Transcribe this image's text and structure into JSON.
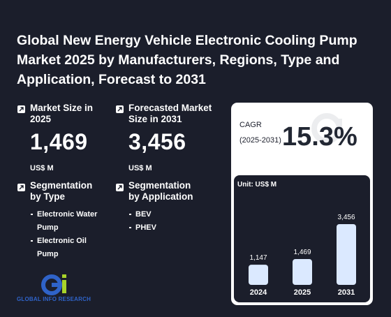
{
  "title": "Global New Energy Vehicle Electronic Cooling Pump Market 2025 by Manufacturers, Regions, Type and Application, Forecast to 2031",
  "market_size": {
    "label": "Market Size in 2025",
    "value": "1,469",
    "unit": "US$ M"
  },
  "forecast": {
    "label": "Forecasted Market Size in 2031",
    "value": "3,456",
    "unit": "US$ M"
  },
  "segmentation_type": {
    "label": "Segmentation by Type",
    "items": [
      "Electronic Water Pump",
      "Electronic Oil Pump"
    ]
  },
  "segmentation_application": {
    "label": "Segmentation by Application",
    "items": [
      "BEV",
      "PHEV"
    ]
  },
  "cagr": {
    "label": "CAGR",
    "period": "(2025-2031)",
    "value": "15.3%"
  },
  "logo_text": "GLOBAL INFO RESEARCH",
  "icons": {
    "arrow": "arrow-up-right-icon",
    "logo": "gi-logo-icon"
  },
  "colors": {
    "background": "#1b1e2b",
    "bar": "#dbe9ff",
    "logo_blue": "#2f63c8",
    "logo_green": "#a8d42a"
  },
  "chart_data": {
    "type": "bar",
    "unit_label": "Unit: US$ M",
    "categories": [
      "2024",
      "2025",
      "2031"
    ],
    "values": [
      1147,
      1469,
      3456
    ],
    "value_labels": [
      "1,147",
      "1,469",
      "3,456"
    ],
    "ylim": [
      0,
      3456
    ],
    "grid": false
  }
}
